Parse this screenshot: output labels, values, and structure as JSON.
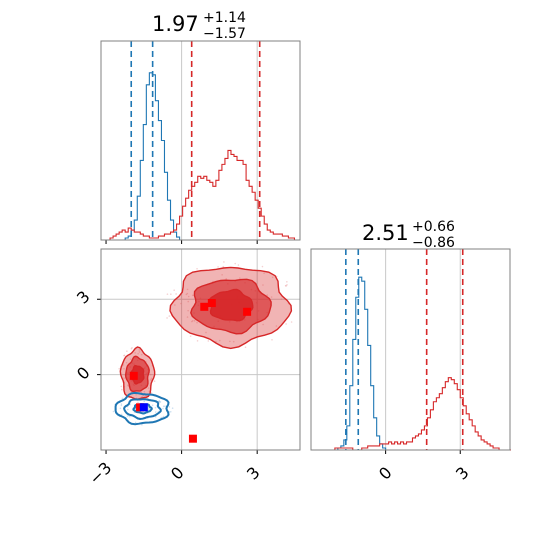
{
  "chart_data": {
    "type": "corner",
    "colors": {
      "blue": "#1f77b4",
      "red": "#d62728",
      "grid": "#c8c8c8",
      "frame": "#808080"
    },
    "panels": [
      {
        "id": "hist-x",
        "type": "histogram",
        "title": {
          "value": "1.97",
          "plus": "+1.14",
          "minus": "−1.57"
        },
        "xlim": [
          -3.2,
          4.7
        ],
        "ylim": [
          0,
          1.0
        ],
        "grid_x": [
          0,
          3
        ],
        "blue_quantiles": [
          -2.0,
          -1.15
        ],
        "red_quantiles": [
          0.4,
          3.1
        ],
        "series": [
          {
            "name": "",
            "color": "#1f77b4",
            "bin_start": -3.2,
            "bin_width": 0.12,
            "counts": [
              0,
              0,
              0,
              0,
              0,
              0,
              0,
              0,
              0.01,
              0.02,
              0.05,
              0.1,
              0.22,
              0.4,
              0.58,
              0.78,
              0.84,
              0.83,
              0.7,
              0.6,
              0.5,
              0.34,
              0.2,
              0.1,
              0.04,
              0.015,
              0,
              0,
              0,
              0,
              0,
              0,
              0,
              0,
              0,
              0,
              0,
              0,
              0,
              0,
              0,
              0,
              0,
              0,
              0,
              0,
              0,
              0,
              0,
              0,
              0,
              0,
              0,
              0,
              0,
              0,
              0,
              0,
              0,
              0,
              0,
              0,
              0,
              0,
              0,
              0
            ]
          },
          {
            "name": "",
            "color": "#d62728",
            "bin_start": -3.2,
            "bin_width": 0.12,
            "counts": [
              0,
              0,
              0,
              0.01,
              0.02,
              0.03,
              0.04,
              0.05,
              0.04,
              0.06,
              0.05,
              0.04,
              0.04,
              0.03,
              0.02,
              0.02,
              0.01,
              0.01,
              0.01,
              0.02,
              0.02,
              0.03,
              0.03,
              0.04,
              0.05,
              0.08,
              0.12,
              0.17,
              0.21,
              0.25,
              0.27,
              0.29,
              0.32,
              0.31,
              0.32,
              0.3,
              0.29,
              0.27,
              0.3,
              0.35,
              0.38,
              0.41,
              0.45,
              0.43,
              0.42,
              0.4,
              0.4,
              0.38,
              0.3,
              0.27,
              0.24,
              0.2,
              0.16,
              0.12,
              0.08,
              0.05,
              0.04,
              0.03,
              0.03,
              0.03,
              0.02,
              0.02,
              0.01,
              0.01,
              0.0,
              0.0
            ]
          }
        ]
      },
      {
        "id": "hist-y",
        "type": "histogram",
        "title": {
          "value": "2.51",
          "plus": "+0.66",
          "minus": "−0.86"
        },
        "xlim": [
          -3.0,
          5.0
        ],
        "ylim": [
          0,
          1.0
        ],
        "grid_x": [
          0,
          3
        ],
        "tick_labels": [
          "0",
          "3"
        ],
        "blue_quantiles": [
          -1.6,
          -1.1
        ],
        "red_quantiles": [
          1.65,
          3.1
        ],
        "series": [
          {
            "name": "",
            "color": "#1f77b4",
            "bin_start": -3.0,
            "bin_width": 0.12,
            "counts": [
              0,
              0,
              0,
              0,
              0,
              0,
              0,
              0,
              0,
              0.01,
              0.02,
              0.05,
              0.12,
              0.32,
              0.55,
              0.76,
              0.86,
              0.84,
              0.7,
              0.52,
              0.32,
              0.16,
              0.07,
              0.03,
              0.01,
              0,
              0,
              0,
              0,
              0,
              0,
              0,
              0,
              0,
              0,
              0,
              0,
              0,
              0,
              0,
              0,
              0,
              0,
              0,
              0,
              0,
              0,
              0,
              0,
              0,
              0,
              0,
              0,
              0,
              0,
              0,
              0,
              0,
              0,
              0,
              0,
              0,
              0,
              0,
              0,
              0,
              0
            ]
          },
          {
            "name": "",
            "color": "#d62728",
            "bin_start": -3.0,
            "bin_width": 0.12,
            "counts": [
              0,
              0,
              0,
              0,
              0,
              0,
              0,
              0,
              0.01,
              0.01,
              0.01,
              0.01,
              0.01,
              0.01,
              0.0,
              0.0,
              0.0,
              0.01,
              0.01,
              0.02,
              0.02,
              0.02,
              0.02,
              0.03,
              0.03,
              0.03,
              0.04,
              0.03,
              0.04,
              0.03,
              0.04,
              0.03,
              0.04,
              0.04,
              0.06,
              0.07,
              0.08,
              0.1,
              0.12,
              0.16,
              0.2,
              0.24,
              0.26,
              0.28,
              0.31,
              0.34,
              0.36,
              0.35,
              0.33,
              0.3,
              0.26,
              0.22,
              0.18,
              0.15,
              0.12,
              0.09,
              0.07,
              0.05,
              0.04,
              0.03,
              0.02,
              0.01,
              0.01,
              0.0,
              0.0,
              0.0,
              0.0
            ]
          }
        ]
      },
      {
        "id": "scatter-xy",
        "type": "contour",
        "xlim": [
          -3.2,
          4.7
        ],
        "ylim": [
          -3.0,
          5.0
        ],
        "grid_x": [
          0,
          3
        ],
        "grid_y": [
          0,
          3
        ],
        "x_tick_labels": [
          "−3",
          "0",
          "3"
        ],
        "y_tick_labels": [
          "0",
          "3"
        ],
        "red_clusters": [
          {
            "cx": 1.95,
            "cy": 2.75,
            "rx": [
              2.3,
              1.55,
              0.85
            ],
            "ry": [
              1.55,
              1.05,
              0.6
            ]
          },
          {
            "cx": -1.75,
            "cy": 0.0,
            "rx": [
              0.65,
              0.45,
              0.25
            ],
            "ry": [
              1.0,
              0.68,
              0.35
            ]
          }
        ],
        "blue_cluster": {
          "cx": -1.55,
          "cy": -1.35,
          "rx": [
            1.05,
            0.7,
            0.35
          ],
          "ry": [
            0.6,
            0.38,
            0.18
          ]
        },
        "red_markers": [
          {
            "x": 0.9,
            "y": 2.7
          },
          {
            "x": 1.2,
            "y": 2.85
          },
          {
            "x": 2.6,
            "y": 2.5
          },
          {
            "x": -1.9,
            "y": -0.05
          },
          {
            "x": -1.65,
            "y": -1.3
          },
          {
            "x": 0.45,
            "y": -2.55
          }
        ],
        "blue_markers": [
          {
            "x": -1.5,
            "y": -1.3
          }
        ]
      }
    ]
  }
}
